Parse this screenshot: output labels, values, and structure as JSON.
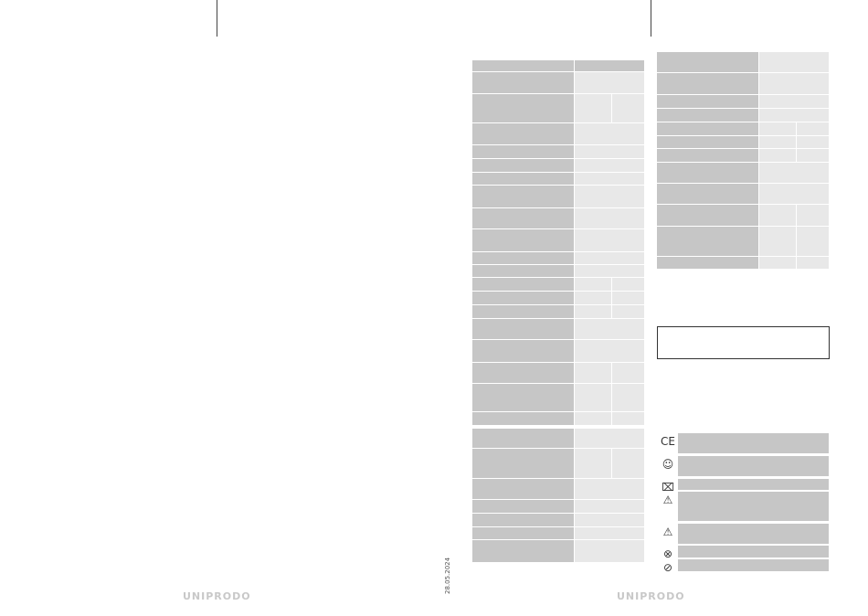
{
  "footer": {
    "date": "28.05.2024",
    "logo_left": "UNIPRODO",
    "logo_right": "UNIPRODO"
  },
  "symbols": [
    "ce-mark-icon",
    "read-manual-icon",
    "weee-bin-icon",
    "warning-icon",
    "electric-warning-icon",
    "no-water-icon",
    "no-touch-icon"
  ],
  "colors": {
    "label_cell": "#c6c6c6",
    "value_cell": "#e8e8e8"
  }
}
